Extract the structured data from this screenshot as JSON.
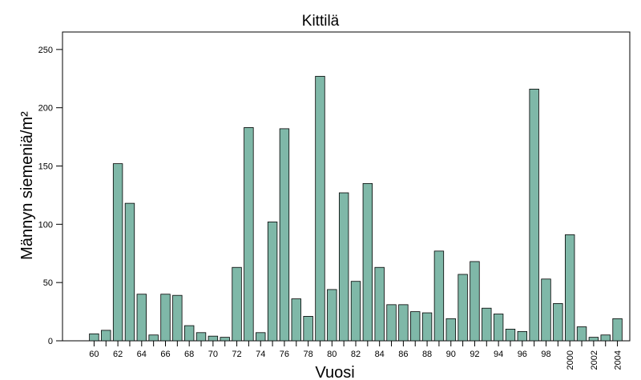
{
  "chart_data": {
    "type": "bar",
    "title": "Kittilä",
    "xlabel": "Vuosi",
    "ylabel": "Männyn siemeniä/m²",
    "ylim": [
      0,
      265
    ],
    "yticks": [
      0,
      50,
      100,
      150,
      200,
      250
    ],
    "grid": false,
    "legend": "none",
    "bar_color": "#7fb8a8",
    "categories": [
      "1960",
      "1961",
      "1962",
      "1963",
      "1964",
      "1965",
      "1966",
      "1967",
      "1968",
      "1969",
      "1970",
      "1971",
      "1972",
      "1973",
      "1974",
      "1975",
      "1976",
      "1977",
      "1978",
      "1979",
      "1980",
      "1981",
      "1982",
      "1983",
      "1984",
      "1985",
      "1986",
      "1987",
      "1988",
      "1989",
      "1990",
      "1991",
      "1992",
      "1993",
      "1994",
      "1995",
      "1996",
      "1997",
      "1998",
      "1999",
      "2000",
      "2001",
      "2002",
      "2003",
      "2004"
    ],
    "tick_labels": [
      "60",
      "",
      "62",
      "",
      "64",
      "",
      "66",
      "",
      "68",
      "",
      "70",
      "",
      "72",
      "",
      "74",
      "",
      "76",
      "",
      "78",
      "",
      "80",
      "",
      "82",
      "",
      "84",
      "",
      "86",
      "",
      "88",
      "",
      "90",
      "",
      "92",
      "",
      "94",
      "",
      "96",
      "",
      "98",
      "",
      "2000",
      "",
      "2002",
      "",
      "2004"
    ],
    "values": [
      6,
      9,
      152,
      118,
      40,
      5,
      40,
      39,
      13,
      7,
      4,
      3,
      63,
      183,
      7,
      102,
      182,
      36,
      21,
      227,
      44,
      127,
      51,
      135,
      63,
      31,
      31,
      25,
      24,
      77,
      19,
      57,
      68,
      28,
      23,
      10,
      8,
      216,
      53,
      32,
      91,
      12,
      3,
      5,
      19
    ]
  }
}
